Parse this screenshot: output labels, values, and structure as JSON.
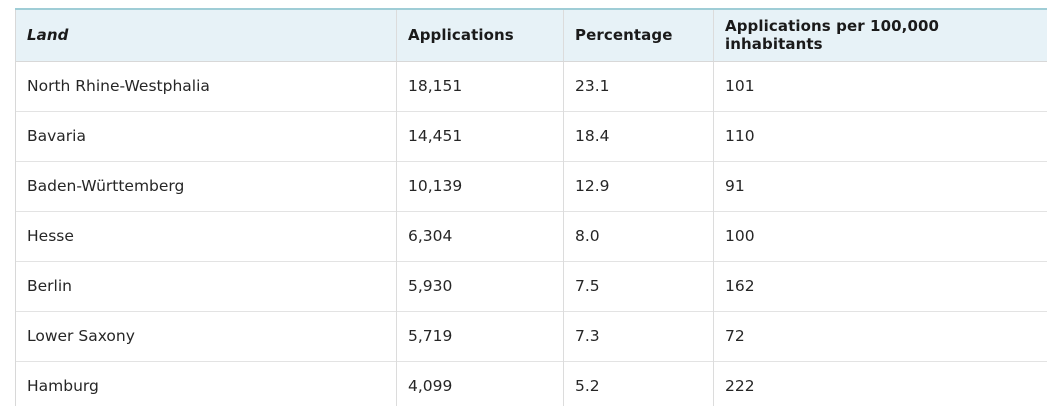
{
  "table": {
    "headers": [
      "Land",
      "Applications",
      "Percentage",
      "Applications per 100,000 inhabitants"
    ],
    "rows": [
      [
        "North Rhine-Westphalia",
        "18,151",
        "23.1",
        "101"
      ],
      [
        "Bavaria",
        "14,451",
        "18.4",
        "110"
      ],
      [
        "Baden-Württemberg",
        "10,139",
        "12.9",
        "91"
      ],
      [
        "Hesse",
        "6,304",
        "8.0",
        "100"
      ],
      [
        "Berlin",
        "5,930",
        "7.5",
        "162"
      ],
      [
        "Lower Saxony",
        "5,719",
        "7.3",
        "72"
      ],
      [
        "Hamburg",
        "4,099",
        "5.2",
        "222"
      ]
    ]
  },
  "colors": {
    "header_background": "#e7f2f7",
    "header_top_border": "#9fcdd6",
    "grid_line": "#dcdcdc"
  }
}
